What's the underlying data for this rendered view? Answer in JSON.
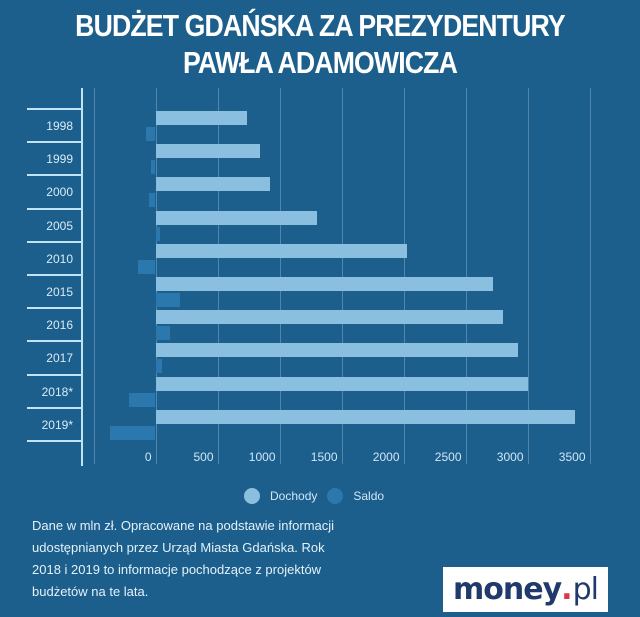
{
  "title": {
    "line1": "BUDŻET GDAŃSKA ZA PREZYDENTURY",
    "line2": "PAWŁA ADAMOWICZA"
  },
  "legend": {
    "dochody": "Dochody",
    "saldo": "Saldo"
  },
  "colors": {
    "background": "#1d5f8c",
    "dochody": "#8bbfe0",
    "saldo": "#2a78ad"
  },
  "note": "Dane w mln zł. Opracowane na podstawie informacji udostępnianych przez Urząd Miasta Gdańska. Rok 2018 i 2019 to informacje pochodzące z projektów budżetów na te lata.",
  "logo": {
    "name": "money",
    "dot": ".",
    "tld": "pl"
  },
  "chart_data": {
    "type": "bar",
    "orientation": "horizontal",
    "title": "BUDŻET GDAŃSKA ZA PREZYDENTURY PAWŁA ADAMOWICZA",
    "xlabel": "",
    "ylabel": "",
    "categories": [
      "1998",
      "1999",
      "2000",
      "2005",
      "2010",
      "2015",
      "2016",
      "2017",
      "2018*",
      "2019*"
    ],
    "series": [
      {
        "name": "Dochody",
        "values": [
          740,
          840,
          925,
          1305,
          2030,
          2725,
          2800,
          2925,
          3005,
          3380
        ]
      },
      {
        "name": "Saldo",
        "values": [
          -75,
          -40,
          -55,
          40,
          -140,
          195,
          120,
          55,
          -210,
          -370
        ]
      }
    ],
    "xticks": [
      "0",
      "500",
      "1000",
      "1500",
      "2000",
      "2500",
      "3000",
      "3500"
    ],
    "xlim": [
      -500,
      3500
    ],
    "grid": true,
    "legend_position": "bottom",
    "units": "mln zł"
  }
}
